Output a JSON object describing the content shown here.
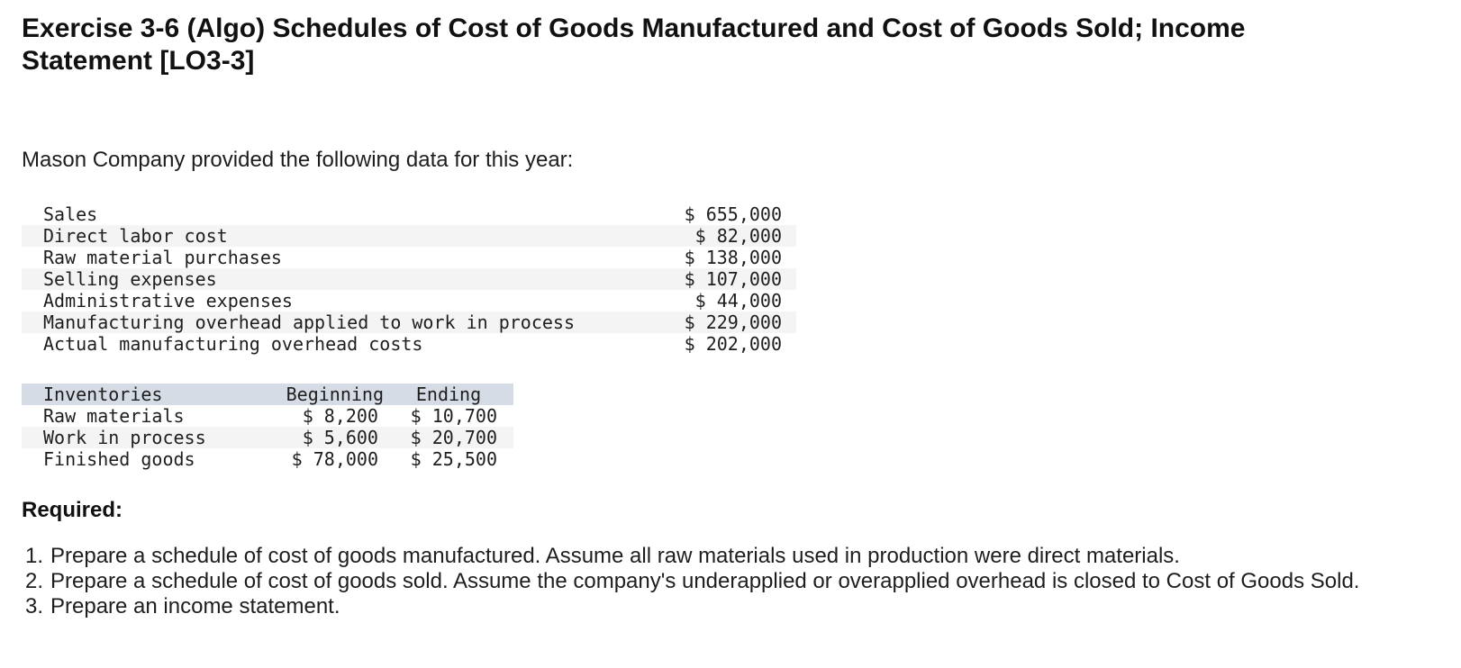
{
  "title": "Exercise 3-6 (Algo) Schedules of Cost of Goods Manufactured and Cost of Goods Sold; Income Statement [LO3-3]",
  "intro": "Mason Company provided the following data for this year:",
  "cost_data": [
    {
      "label": "Sales",
      "amount": "$ 655,000"
    },
    {
      "label": "Direct labor cost",
      "amount": "$ 82,000"
    },
    {
      "label": "Raw material purchases",
      "amount": "$ 138,000"
    },
    {
      "label": "Selling expenses",
      "amount": "$ 107,000"
    },
    {
      "label": "Administrative expenses",
      "amount": "$ 44,000"
    },
    {
      "label": "Manufacturing overhead applied to work in process",
      "amount": "$ 229,000"
    },
    {
      "label": "Actual manufacturing overhead costs",
      "amount": "$ 202,000"
    }
  ],
  "inventories": {
    "header": {
      "label": "Inventories",
      "beginning": "Beginning",
      "ending": "Ending"
    },
    "rows": [
      {
        "label": "Raw materials",
        "beginning": "$ 8,200",
        "ending": "$ 10,700"
      },
      {
        "label": "Work in process",
        "beginning": "$ 5,600",
        "ending": "$ 20,700"
      },
      {
        "label": "Finished goods",
        "beginning": "$ 78,000",
        "ending": "$ 25,500"
      }
    ]
  },
  "required": {
    "heading": "Required:",
    "items": [
      {
        "number": "1.",
        "text": "Prepare a schedule of cost of goods manufactured. Assume all raw materials used in production were direct materials."
      },
      {
        "number": "2.",
        "text": "Prepare a schedule of cost of goods sold. Assume the company's underapplied or overapplied overhead is closed to Cost of Goods Sold."
      },
      {
        "number": "3.",
        "text": "Prepare an income statement."
      }
    ]
  }
}
